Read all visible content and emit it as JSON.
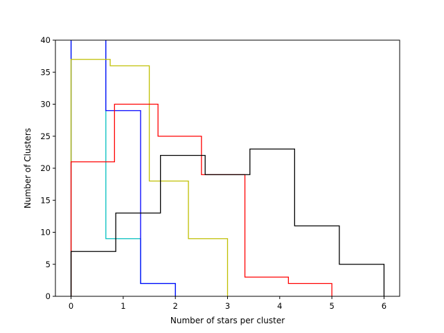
{
  "chart_data": {
    "type": "step",
    "xlabel": "Number of stars per cluster",
    "ylabel": "Number of Clusters",
    "xlim": [
      -0.3,
      6.3
    ],
    "ylim": [
      0,
      40
    ],
    "xticks": [
      0,
      1,
      2,
      3,
      4,
      5,
      6
    ],
    "yticks": [
      0,
      5,
      10,
      15,
      20,
      25,
      30,
      35,
      40
    ],
    "grid": false,
    "series": [
      {
        "color": "#00bfbf",
        "edges": [
          0,
          0.667,
          1.333,
          2
        ],
        "counts": [
          48,
          9,
          2
        ]
      },
      {
        "color": "#0000ff",
        "edges": [
          0,
          0.667,
          1.333,
          2
        ],
        "counts": [
          48,
          29,
          2
        ]
      },
      {
        "color": "#bfbf00",
        "edges": [
          0,
          0.75,
          1.5,
          2.25,
          3
        ],
        "counts": [
          37,
          36,
          18,
          9
        ]
      },
      {
        "color": "#ff0000",
        "edges": [
          0,
          0.833,
          1.667,
          2.5,
          3.333,
          4.167,
          5
        ],
        "counts": [
          21,
          30,
          25,
          19,
          3,
          2
        ]
      },
      {
        "color": "#000000",
        "edges": [
          0,
          0.857,
          1.714,
          2.571,
          3.429,
          4.286,
          5.143,
          6
        ],
        "counts": [
          7,
          13,
          22,
          19,
          23,
          11,
          5
        ]
      }
    ]
  }
}
